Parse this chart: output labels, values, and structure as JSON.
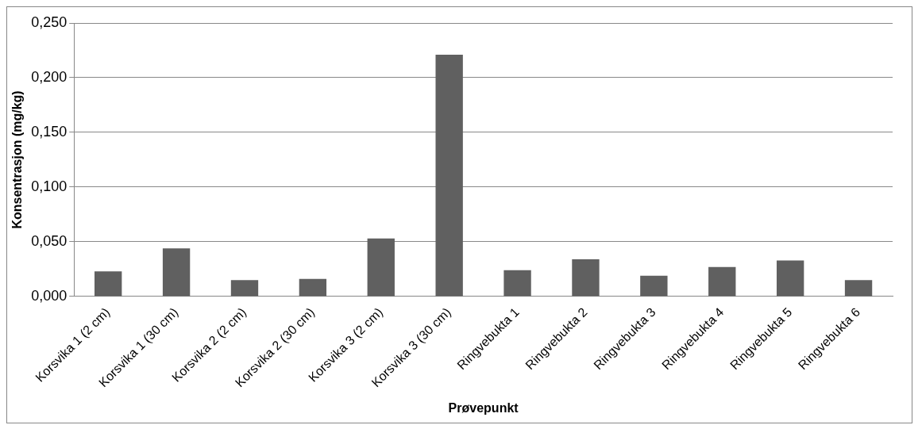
{
  "chart_data": {
    "type": "bar",
    "xlabel": "Prøvepunkt",
    "ylabel": "Konsentrasjon (mg/kg)",
    "categories": [
      "Korsvika 1 (2 cm)",
      "Korsvika 1 (30 cm)",
      "Korsvika 2 (2 cm)",
      "Korsvika 2 (30 cm)",
      "Korsvika 3 (2 cm)",
      "Korsvika 3 (30 cm)",
      "Ringvebukta 1",
      "Ringvebukta 2",
      "Ringvebukta 3",
      "Ringvebukta 4",
      "Ringvebukta 5",
      "Ringvebukta 6"
    ],
    "values": [
      0.023,
      0.044,
      0.015,
      0.016,
      0.053,
      0.221,
      0.024,
      0.034,
      0.019,
      0.027,
      0.033,
      0.015
    ],
    "color": "#606060",
    "ylim": [
      0,
      0.25
    ],
    "yticks": [
      {
        "value": 0,
        "label": "0,000"
      },
      {
        "value": 0.05,
        "label": "0,050"
      },
      {
        "value": 0.1,
        "label": "0,100"
      },
      {
        "value": 0.15,
        "label": "0,150"
      },
      {
        "value": 0.2,
        "label": "0,200"
      },
      {
        "value": 0.25,
        "label": "0,250"
      }
    ],
    "grid": "y",
    "legend": false
  }
}
